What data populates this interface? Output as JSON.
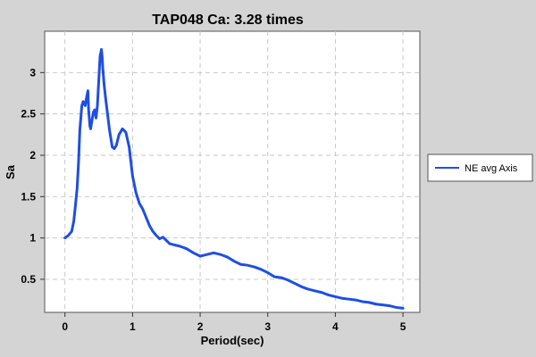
{
  "chart_data": {
    "type": "line",
    "title": "TAP048 Ca: 3.28 times",
    "xlabel": "Period(sec)",
    "ylabel": "Sa",
    "xlim": [
      -0.3,
      5.25
    ],
    "ylim": [
      0.1,
      3.5
    ],
    "xticks": [
      0,
      1,
      2,
      3,
      4,
      5
    ],
    "xtick_labels": [
      "0",
      "1",
      "2",
      "3",
      "4",
      "5"
    ],
    "yticks": [
      0.5,
      1,
      1.5,
      2,
      2.5,
      3
    ],
    "ytick_labels": [
      "0.5",
      "1",
      "1.5",
      "2",
      "2.5",
      "3"
    ],
    "grid": true,
    "legend_position": "right",
    "series": [
      {
        "name": "NE avg Axis",
        "color": "#1f4fe0",
        "x": [
          0.0,
          0.05,
          0.1,
          0.13,
          0.15,
          0.18,
          0.2,
          0.22,
          0.25,
          0.27,
          0.3,
          0.32,
          0.34,
          0.35,
          0.37,
          0.38,
          0.4,
          0.42,
          0.44,
          0.46,
          0.48,
          0.5,
          0.52,
          0.54,
          0.55,
          0.56,
          0.58,
          0.6,
          0.63,
          0.66,
          0.7,
          0.73,
          0.76,
          0.8,
          0.85,
          0.9,
          0.95,
          1.0,
          1.05,
          1.1,
          1.15,
          1.2,
          1.25,
          1.3,
          1.35,
          1.4,
          1.45,
          1.5,
          1.55,
          1.6,
          1.7,
          1.8,
          1.9,
          2.0,
          2.1,
          2.2,
          2.3,
          2.4,
          2.5,
          2.6,
          2.7,
          2.8,
          2.9,
          3.0,
          3.1,
          3.2,
          3.3,
          3.4,
          3.5,
          3.6,
          3.7,
          3.8,
          3.9,
          4.0,
          4.1,
          4.2,
          4.3,
          4.4,
          4.5,
          4.6,
          4.7,
          4.8,
          4.9,
          5.0
        ],
        "y": [
          1.0,
          1.03,
          1.08,
          1.2,
          1.35,
          1.6,
          1.9,
          2.3,
          2.6,
          2.65,
          2.6,
          2.7,
          2.78,
          2.55,
          2.35,
          2.32,
          2.42,
          2.52,
          2.55,
          2.45,
          2.6,
          2.9,
          3.2,
          3.28,
          3.2,
          3.05,
          2.85,
          2.7,
          2.5,
          2.3,
          2.1,
          2.08,
          2.12,
          2.25,
          2.32,
          2.28,
          2.1,
          1.75,
          1.55,
          1.42,
          1.35,
          1.25,
          1.15,
          1.08,
          1.03,
          0.99,
          1.01,
          0.97,
          0.93,
          0.92,
          0.9,
          0.87,
          0.82,
          0.78,
          0.8,
          0.82,
          0.8,
          0.77,
          0.72,
          0.68,
          0.67,
          0.65,
          0.62,
          0.58,
          0.53,
          0.52,
          0.49,
          0.45,
          0.41,
          0.38,
          0.36,
          0.34,
          0.31,
          0.29,
          0.27,
          0.26,
          0.25,
          0.23,
          0.22,
          0.2,
          0.19,
          0.18,
          0.16,
          0.15
        ]
      }
    ]
  }
}
